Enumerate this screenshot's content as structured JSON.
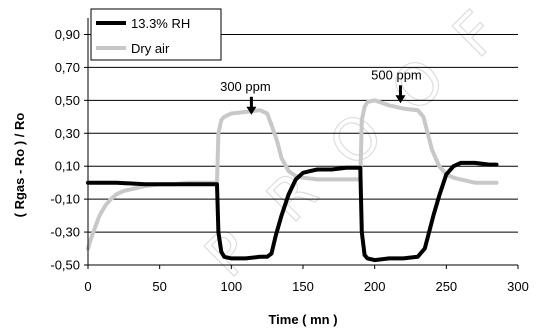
{
  "chart_data": {
    "type": "line",
    "xlabel": "Time ( mn )",
    "ylabel": "( Rgas - Ro ) / Ro",
    "xlim": [
      0,
      300
    ],
    "ylim": [
      -0.5,
      1.0
    ],
    "x_ticks": [
      0,
      50,
      100,
      150,
      200,
      250,
      300
    ],
    "x_tick_labels": [
      "0",
      "50",
      "100",
      "150",
      "200",
      "250",
      "300"
    ],
    "y_ticks": [
      -0.5,
      -0.3,
      -0.1,
      0.1,
      0.3,
      0.5,
      0.7,
      0.9
    ],
    "y_tick_labels": [
      "-0,50",
      "-0,30",
      "-0,10",
      "0,10",
      "0,30",
      "0,50",
      "0,70",
      "0,90"
    ],
    "grid": "horizontal",
    "legend_position": "top-left",
    "series": [
      {
        "name": "13.3% RH",
        "color": "#000000",
        "x": [
          0,
          20,
          40,
          60,
          80,
          90,
          91,
          93,
          95,
          100,
          110,
          120,
          125,
          128,
          131,
          135,
          140,
          145,
          150,
          155,
          160,
          170,
          180,
          190,
          191,
          193,
          195,
          200,
          210,
          220,
          230,
          235,
          238,
          241,
          245,
          250,
          255,
          260,
          270,
          280,
          285
        ],
        "y": [
          0.0,
          0.0,
          -0.01,
          -0.01,
          -0.01,
          -0.01,
          -0.3,
          -0.42,
          -0.45,
          -0.46,
          -0.46,
          -0.45,
          -0.45,
          -0.43,
          -0.32,
          -0.2,
          -0.07,
          0.02,
          0.06,
          0.07,
          0.08,
          0.08,
          0.09,
          0.09,
          -0.3,
          -0.44,
          -0.46,
          -0.47,
          -0.46,
          -0.46,
          -0.45,
          -0.4,
          -0.3,
          -0.2,
          -0.08,
          0.05,
          0.1,
          0.12,
          0.12,
          0.11,
          0.11
        ]
      },
      {
        "name": "Dry air",
        "color": "#c8c8c8",
        "x": [
          0,
          2,
          5,
          8,
          12,
          16,
          20,
          25,
          30,
          40,
          50,
          60,
          70,
          80,
          88,
          90,
          91,
          93,
          95,
          100,
          110,
          120,
          125,
          128,
          132,
          135,
          140,
          145,
          150,
          160,
          170,
          180,
          188,
          190,
          191,
          193,
          195,
          200,
          210,
          220,
          230,
          234,
          237,
          240,
          245,
          250,
          255,
          260,
          270,
          280,
          285
        ],
        "y": [
          -0.4,
          -0.34,
          -0.27,
          -0.2,
          -0.14,
          -0.1,
          -0.07,
          -0.05,
          -0.04,
          -0.02,
          -0.01,
          -0.01,
          0.0,
          0.0,
          0.0,
          0.0,
          0.3,
          0.38,
          0.4,
          0.42,
          0.43,
          0.44,
          0.42,
          0.35,
          0.25,
          0.15,
          0.07,
          0.04,
          0.03,
          0.02,
          0.02,
          0.02,
          0.02,
          0.02,
          0.38,
          0.46,
          0.49,
          0.5,
          0.47,
          0.45,
          0.44,
          0.4,
          0.3,
          0.2,
          0.1,
          0.05,
          0.03,
          0.02,
          0.0,
          0.0,
          0.0
        ]
      }
    ],
    "annotations": [
      {
        "text": "300 ppm",
        "x": 114,
        "y": 0.4
      },
      {
        "text": "500 ppm",
        "x": 218,
        "y": 0.47
      }
    ],
    "legend_entries": [
      "13.3% RH",
      "Dry air"
    ]
  },
  "watermark": {
    "text": "PROOF"
  }
}
